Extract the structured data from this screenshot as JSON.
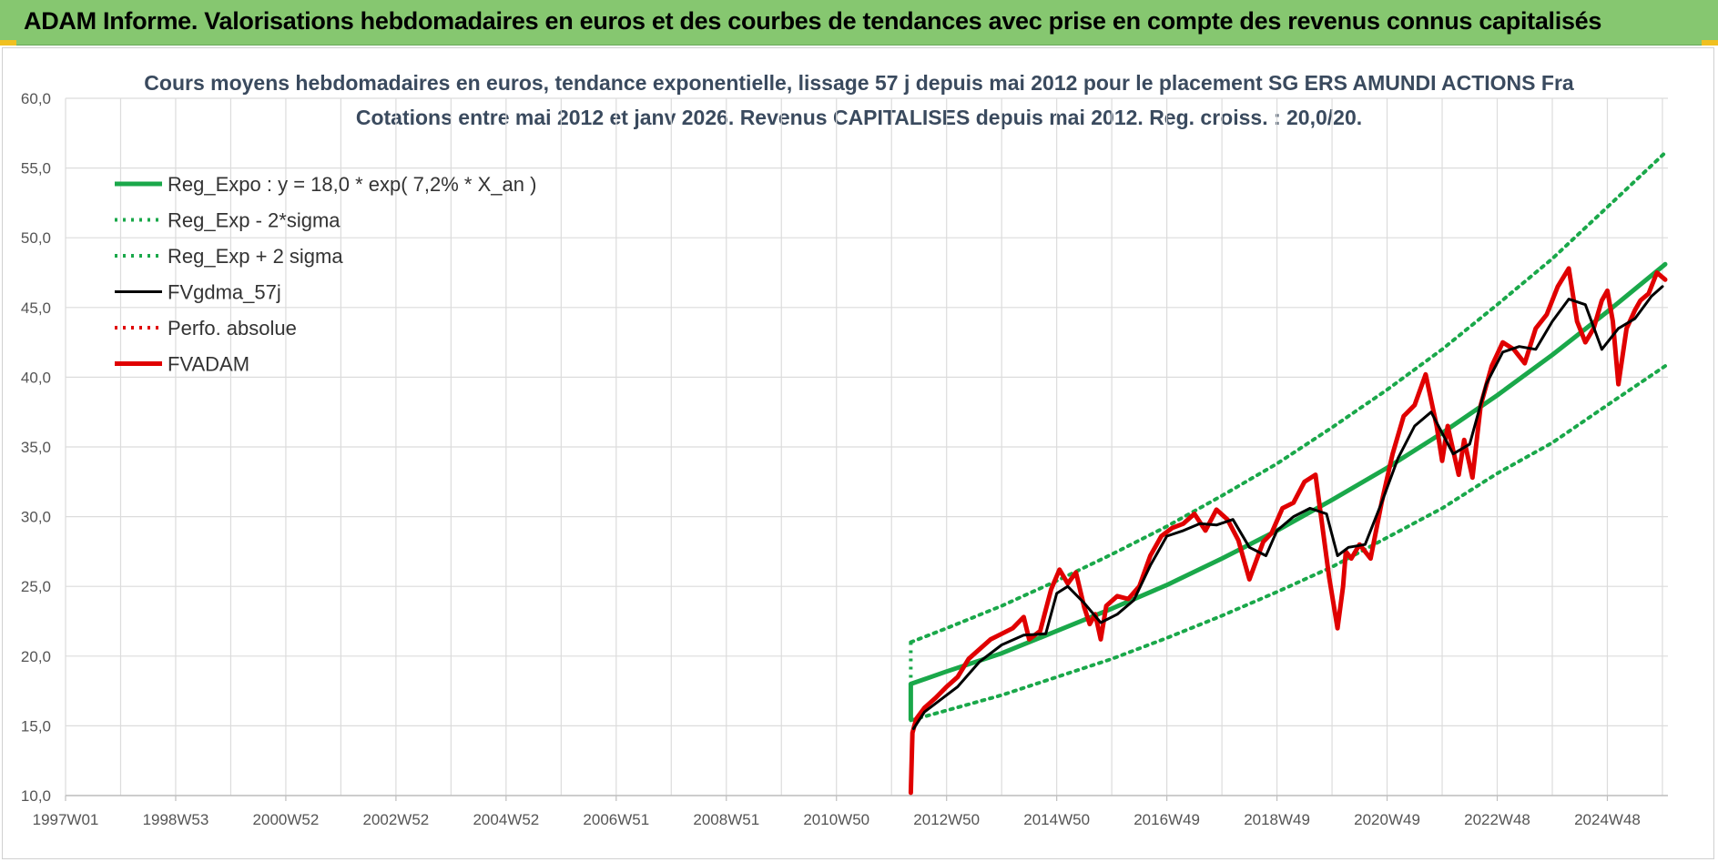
{
  "header": {
    "title": "ADAM Informe. Valorisations hebdomadaires en euros et des courbes de tendances avec prise en compte des revenus connus capitalisés"
  },
  "colors": {
    "header_bg": "#86c770",
    "trend": "#1aa84a",
    "band": "#1aa84a",
    "smoothed": "#000000",
    "perfo": "#e00000",
    "price": "#e00000",
    "grid": "#dcdcdc"
  },
  "chart_data": {
    "type": "line",
    "title_line1": "Cours moyens hebdomadaires en euros, tendance exponentielle, lissage 57 j depuis mai 2012 pour le placement SG ERS AMUNDI ACTIONS Fra",
    "title_line2": "Cotations entre mai 2012 et janv 2026. Revenus CAPITALISES depuis mai 2012. Reg. croiss. : 20,0/20.",
    "xlabel": "",
    "ylabel": "",
    "ylim": [
      10,
      60
    ],
    "yticks": [
      "60,0",
      "55,0",
      "50,0",
      "45,0",
      "40,0",
      "35,0",
      "30,0",
      "25,0",
      "20,0",
      "15,0",
      "10,0"
    ],
    "xlim": [
      1997.0,
      2026.1
    ],
    "xticks": [
      {
        "label": "1997W01",
        "x": 1997.0
      },
      {
        "label": "1998W53",
        "x": 1999.0
      },
      {
        "label": "2000W52",
        "x": 2001.0
      },
      {
        "label": "2002W52",
        "x": 2003.0
      },
      {
        "label": "2004W52",
        "x": 2005.0
      },
      {
        "label": "2006W51",
        "x": 2007.0
      },
      {
        "label": "2008W51",
        "x": 2009.0
      },
      {
        "label": "2010W50",
        "x": 2011.0
      },
      {
        "label": "2012W50",
        "x": 2013.0
      },
      {
        "label": "2014W50",
        "x": 2015.0
      },
      {
        "label": "2016W49",
        "x": 2017.0
      },
      {
        "label": "2018W49",
        "x": 2019.0
      },
      {
        "label": "2020W49",
        "x": 2021.0
      },
      {
        "label": "2022W48",
        "x": 2023.0
      },
      {
        "label": "2024W48",
        "x": 2025.0
      }
    ],
    "grid": true,
    "legend_position": "top-left",
    "series": [
      {
        "name": "Reg_Expo : y = 18,0 * exp( 7,2% *  X_an )",
        "style": "solid-thick",
        "color": "#1aa84a",
        "x": [
          2012.35,
          2013.0,
          2014.0,
          2015.0,
          2016.0,
          2017.0,
          2018.0,
          2019.0,
          2020.0,
          2021.0,
          2022.0,
          2023.0,
          2024.0,
          2025.0,
          2026.05
        ],
        "y": [
          18.0,
          18.9,
          20.2,
          21.8,
          23.4,
          25.1,
          27.0,
          29.0,
          31.2,
          33.5,
          36.0,
          38.7,
          41.6,
          44.7,
          48.1
        ]
      },
      {
        "name": "Reg_Exp - 2*sigma",
        "style": "dotted",
        "color": "#1aa84a",
        "x": [
          2012.35,
          2013.0,
          2014.0,
          2015.0,
          2016.0,
          2017.0,
          2018.0,
          2019.0,
          2020.0,
          2021.0,
          2022.0,
          2023.0,
          2024.0,
          2025.0,
          2026.05
        ],
        "y": [
          15.4,
          16.1,
          17.2,
          18.5,
          19.8,
          21.3,
          22.9,
          24.6,
          26.4,
          28.5,
          30.6,
          33.1,
          35.3,
          38.0,
          40.8
        ]
      },
      {
        "name": "Reg_Exp + 2 sigma",
        "style": "dotted",
        "color": "#1aa84a",
        "x": [
          2012.35,
          2013.0,
          2014.0,
          2015.0,
          2016.0,
          2017.0,
          2018.0,
          2019.0,
          2020.0,
          2021.0,
          2022.0,
          2023.0,
          2024.0,
          2025.0,
          2026.05
        ],
        "y": [
          21.0,
          22.0,
          23.6,
          25.4,
          27.3,
          29.3,
          31.5,
          33.8,
          36.4,
          39.1,
          42.0,
          45.2,
          48.5,
          52.2,
          56.1
        ]
      },
      {
        "name": "FVgdma_57j",
        "style": "solid",
        "color": "#000000",
        "x": [
          2012.4,
          2012.6,
          2012.9,
          2013.2,
          2013.6,
          2014.0,
          2014.4,
          2014.8,
          2015.0,
          2015.2,
          2015.5,
          2015.8,
          2016.1,
          2016.4,
          2016.7,
          2017.0,
          2017.3,
          2017.6,
          2017.9,
          2018.2,
          2018.5,
          2018.8,
          2019.0,
          2019.3,
          2019.6,
          2019.9,
          2020.1,
          2020.3,
          2020.6,
          2020.9,
          2021.2,
          2021.5,
          2021.8,
          2022.0,
          2022.2,
          2022.5,
          2022.8,
          2023.1,
          2023.4,
          2023.7,
          2024.0,
          2024.3,
          2024.6,
          2024.9,
          2025.2,
          2025.5,
          2025.8,
          2026.0
        ],
        "y": [
          14.8,
          16.0,
          16.9,
          17.8,
          19.6,
          20.8,
          21.5,
          21.6,
          24.5,
          25.0,
          23.8,
          22.4,
          23.0,
          24.0,
          26.5,
          28.6,
          29.0,
          29.5,
          29.4,
          29.8,
          27.8,
          27.2,
          29.0,
          30.0,
          30.6,
          30.2,
          27.2,
          27.8,
          28.0,
          31.0,
          34.2,
          36.5,
          37.5,
          36.0,
          34.5,
          35.2,
          39.5,
          41.8,
          42.2,
          42.0,
          44.0,
          45.6,
          45.2,
          42.0,
          43.5,
          44.2,
          45.8,
          46.5
        ]
      },
      {
        "name": "Perfo. absolue",
        "style": "dotted",
        "color": "#e00000",
        "x": [],
        "y": []
      },
      {
        "name": "FVADAM",
        "style": "solid-thick",
        "color": "#e00000",
        "x": [
          2012.35,
          2012.38,
          2012.45,
          2012.6,
          2012.8,
          2013.0,
          2013.2,
          2013.4,
          2013.6,
          2013.8,
          2014.0,
          2014.2,
          2014.4,
          2014.5,
          2014.7,
          2014.9,
          2015.05,
          2015.2,
          2015.35,
          2015.5,
          2015.6,
          2015.7,
          2015.8,
          2015.9,
          2016.1,
          2016.3,
          2016.5,
          2016.7,
          2016.9,
          2017.1,
          2017.3,
          2017.5,
          2017.7,
          2017.9,
          2018.1,
          2018.3,
          2018.5,
          2018.75,
          2018.9,
          2019.1,
          2019.3,
          2019.5,
          2019.7,
          2019.95,
          2020.1,
          2020.2,
          2020.25,
          2020.35,
          2020.5,
          2020.7,
          2020.9,
          2021.1,
          2021.3,
          2021.5,
          2021.7,
          2021.9,
          2022.0,
          2022.1,
          2022.3,
          2022.4,
          2022.55,
          2022.7,
          2022.9,
          2023.1,
          2023.3,
          2023.5,
          2023.7,
          2023.9,
          2024.1,
          2024.3,
          2024.45,
          2024.6,
          2024.75,
          2024.9,
          2025.0,
          2025.1,
          2025.2,
          2025.35,
          2025.5,
          2025.6,
          2025.75,
          2025.9,
          2026.05
        ],
        "y": [
          10.2,
          14.5,
          15.5,
          16.3,
          17.0,
          17.8,
          18.5,
          19.8,
          20.5,
          21.2,
          21.6,
          22.0,
          22.8,
          21.2,
          21.8,
          24.8,
          26.2,
          25.2,
          26.0,
          23.5,
          22.3,
          23.0,
          21.2,
          23.6,
          24.3,
          24.1,
          25.0,
          27.2,
          28.6,
          29.2,
          29.5,
          30.2,
          29.0,
          30.5,
          29.8,
          28.3,
          25.5,
          28.2,
          28.8,
          30.6,
          31.0,
          32.5,
          33.0,
          25.6,
          22.0,
          25.0,
          27.5,
          27.0,
          28.0,
          27.0,
          31.0,
          34.5,
          37.2,
          38.0,
          40.2,
          36.5,
          34.0,
          36.5,
          33.0,
          35.5,
          32.8,
          38.0,
          40.8,
          42.5,
          42.0,
          41.0,
          43.5,
          44.5,
          46.5,
          47.8,
          44.0,
          42.5,
          43.5,
          45.5,
          46.2,
          44.0,
          39.5,
          43.5,
          44.8,
          45.5,
          46.0,
          47.5,
          47.0
        ]
      }
    ]
  }
}
